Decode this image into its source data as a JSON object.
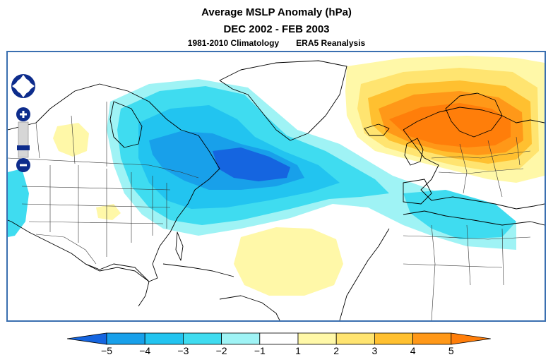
{
  "title": "Average MSLP Anomaly (hPa)",
  "period": "DEC 2002 - FEB 2003",
  "climatology": "1981-2010 Climatology",
  "source": "ERA5 Reanalysis",
  "controls": {
    "pan": "pan-control",
    "zoom_in": "+",
    "zoom_out": "−"
  },
  "colorbar": {
    "labels": [
      "−5",
      "−4",
      "−3",
      "−2",
      "−1",
      "1",
      "2",
      "3",
      "4",
      "5"
    ],
    "colors": [
      "#1565e0",
      "#18a0ea",
      "#22c4f0",
      "#3fdcf0",
      "#9ff3f5",
      "#ffffff",
      "#fff8a8",
      "#ffe470",
      "#ffc030",
      "#ff9818",
      "#ff7e0a"
    ]
  },
  "palette": {
    "anom_neg_5": "#1565e0",
    "anom_neg_4": "#18a0ea",
    "anom_neg_3": "#22c4f0",
    "anom_neg_2": "#3fdcf0",
    "anom_neg_1": "#9ff3f5",
    "anom_pos_1": "#fff8a8",
    "anom_pos_2": "#ffe470",
    "anom_pos_3": "#ffc030",
    "anom_pos_4": "#ff9818",
    "anom_pos_5": "#ff7e0a",
    "frame": "#3a6fb0",
    "nav": "#0d2c8c"
  }
}
